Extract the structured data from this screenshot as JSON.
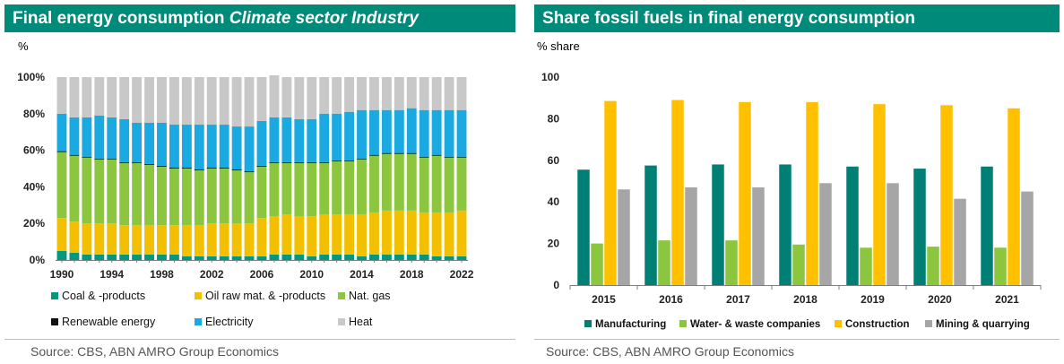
{
  "left": {
    "title_main": "Final energy consumption ",
    "title_italic": "Climate sector Industry",
    "unit": "%",
    "source": "Source: CBS, ABN AMRO Group Economics"
  },
  "right": {
    "title": "Share fossil fuels in final energy consumption",
    "unit": "% share",
    "source": "Source: CBS, ABN AMRO Group Economics"
  },
  "colors": {
    "teal": "#008a7a",
    "coal": "#009980",
    "oil": "#f2c000",
    "gas": "#8cc63f",
    "renewable": "#111111",
    "electricity": "#1aa9e0",
    "heat": "#c8c8c8",
    "manufacturing": "#007f75",
    "water_waste": "#8cc63f",
    "construction": "#ffc000",
    "mining": "#a6a6a6"
  },
  "chart_data": [
    {
      "type": "bar",
      "stacked": true,
      "title": "Final energy consumption Climate sector Industry",
      "ylabel": "%",
      "ylim": [
        0,
        100
      ],
      "yticks": [
        "0%",
        "20%",
        "40%",
        "60%",
        "80%",
        "100%"
      ],
      "x_tick_labels": [
        "1990",
        "1994",
        "1998",
        "2002",
        "2006",
        "2010",
        "2014",
        "2018",
        "2022"
      ],
      "grid": false,
      "legend": "bottom",
      "categories": [
        "1990",
        "1991",
        "1992",
        "1993",
        "1994",
        "1995",
        "1996",
        "1997",
        "1998",
        "1999",
        "2000",
        "2001",
        "2002",
        "2003",
        "2004",
        "2005",
        "2006",
        "2007",
        "2008",
        "2009",
        "2010",
        "2011",
        "2012",
        "2013",
        "2014",
        "2015",
        "2016",
        "2017",
        "2018",
        "2019",
        "2020",
        "2021",
        "2022"
      ],
      "series": [
        {
          "name": "Coal & -products",
          "color_key": "coal",
          "values": [
            5,
            4,
            3,
            3,
            3,
            3,
            3,
            3,
            3,
            3,
            2,
            2,
            2,
            2,
            2,
            2,
            2,
            3,
            3,
            3,
            2,
            3,
            3,
            3,
            2,
            3,
            3,
            3,
            3,
            3,
            2,
            2,
            2
          ]
        },
        {
          "name": "Oil raw mat. & -products",
          "color_key": "oil",
          "values": [
            18,
            17,
            17,
            17,
            17,
            16,
            16,
            16,
            16,
            16,
            17,
            17,
            18,
            18,
            18,
            18,
            21,
            21,
            22,
            21,
            22,
            22,
            22,
            22,
            23,
            23,
            24,
            24,
            24,
            23,
            24,
            24,
            25
          ]
        },
        {
          "name": "Nat. gas",
          "color_key": "gas",
          "values": [
            36,
            36,
            36,
            35,
            35,
            34,
            34,
            33,
            32,
            31,
            31,
            30,
            30,
            30,
            29,
            28,
            28,
            29,
            28,
            29,
            29,
            28,
            29,
            29,
            30,
            31,
            31,
            31,
            31,
            30,
            31,
            30,
            29
          ]
        },
        {
          "name": "Renewable energy",
          "color_key": "renewable",
          "values": [
            0.5,
            0.5,
            0.5,
            0.5,
            0.5,
            0.5,
            0.5,
            0.5,
            0.5,
            0.5,
            0.5,
            0.5,
            0.5,
            0.5,
            0.5,
            0.5,
            0.5,
            0.5,
            0.5,
            0.5,
            0.5,
            0.5,
            0.5,
            0.5,
            0.5,
            0.5,
            0.5,
            0.5,
            0.5,
            0.5,
            0.5,
            0.5,
            0.5
          ]
        },
        {
          "name": "Electricity",
          "color_key": "electricity",
          "values": [
            20.5,
            20.5,
            21.5,
            23.5,
            22.5,
            23.5,
            21.5,
            22.5,
            23.5,
            23.5,
            23.5,
            24.5,
            23.5,
            23.5,
            23.5,
            24.5,
            24.5,
            24.5,
            24.5,
            23.5,
            23.5,
            26.5,
            25.5,
            26.5,
            26.5,
            24.5,
            23.5,
            23.5,
            24.5,
            25.5,
            24.5,
            25.5,
            25.5
          ]
        },
        {
          "name": "Heat",
          "color_key": "heat",
          "values": [
            20,
            22,
            22,
            21,
            22,
            23,
            25,
            25,
            25,
            26,
            26,
            26,
            26,
            26,
            27,
            27,
            24,
            23,
            22,
            23,
            23,
            20,
            20,
            19,
            18,
            18,
            18,
            18,
            17,
            18,
            18,
            18,
            18
          ]
        }
      ]
    },
    {
      "type": "bar",
      "title": "Share fossil fuels in final energy consumption",
      "ylabel": "% share",
      "ylim": [
        0,
        100
      ],
      "yticks": [
        "0",
        "20",
        "40",
        "60",
        "80",
        "100"
      ],
      "grid": false,
      "legend": "bottom",
      "categories": [
        "2015",
        "2016",
        "2017",
        "2018",
        "2019",
        "2020",
        "2021"
      ],
      "series": [
        {
          "name": "Manufacturing",
          "color_key": "manufacturing",
          "values": [
            55.5,
            57.5,
            58,
            58,
            57,
            56,
            57
          ]
        },
        {
          "name": "Water- & waste companies",
          "color_key": "water_waste",
          "values": [
            20,
            21.5,
            21.5,
            19.5,
            18,
            18.5,
            18
          ]
        },
        {
          "name": "Construction",
          "color_key": "construction",
          "values": [
            88.5,
            89,
            88,
            88,
            87,
            86.5,
            85
          ]
        },
        {
          "name": "Mining & quarrying",
          "color_key": "mining",
          "values": [
            46,
            47,
            47,
            49,
            49,
            41.5,
            45
          ]
        }
      ]
    }
  ]
}
